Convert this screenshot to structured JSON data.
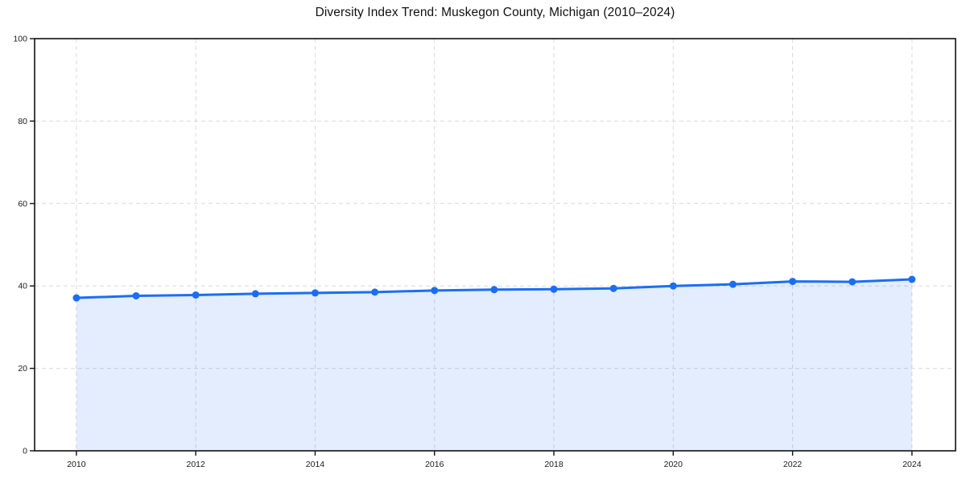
{
  "chart_data": {
    "type": "area",
    "title": "Diversity Index Trend: Muskegon County, Michigan (2010–2024)",
    "xlabel": "",
    "ylabel": "",
    "x": [
      2010,
      2011,
      2012,
      2013,
      2014,
      2015,
      2016,
      2017,
      2018,
      2019,
      2020,
      2021,
      2022,
      2023,
      2024
    ],
    "series": [
      {
        "name": "Diversity Index",
        "values": [
          37.1,
          37.6,
          37.8,
          38.1,
          38.3,
          38.5,
          38.9,
          39.1,
          39.2,
          39.4,
          40.0,
          40.4,
          41.1,
          41.0,
          41.6
        ]
      }
    ],
    "xlim": [
      2009.3,
      2024.73
    ],
    "ylim": [
      0,
      100
    ],
    "x_ticks": [
      2010,
      2012,
      2014,
      2016,
      2018,
      2020,
      2022,
      2024
    ],
    "y_ticks": [
      0,
      20,
      40,
      60,
      80,
      100
    ],
    "grid": true,
    "grid_style": "dashed",
    "legend": false,
    "markers": true,
    "colors": {
      "line": "#1b6ef3",
      "marker": "#1b6ef3",
      "fill": "rgba(27,110,243,0.12)",
      "grid": "#d9d9d9",
      "axis_frame": "#111111",
      "tick_text": "#1a1a1a",
      "background": "#ffffff"
    }
  }
}
